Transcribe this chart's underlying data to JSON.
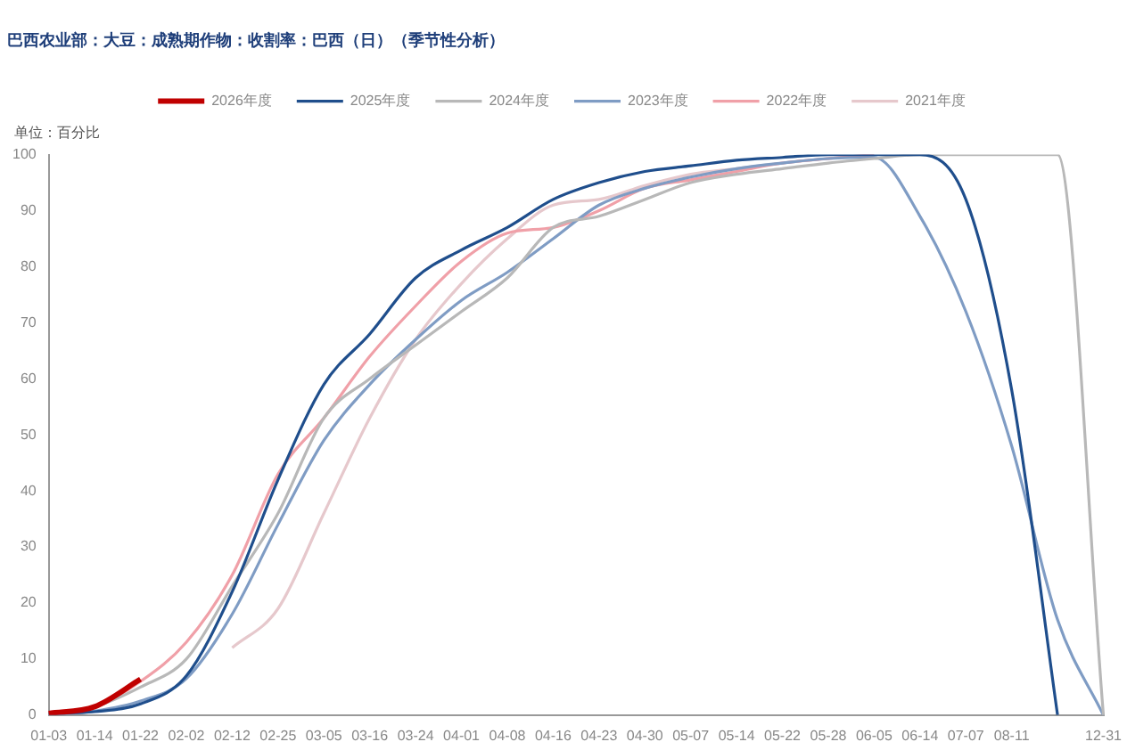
{
  "chart_data": {
    "type": "line",
    "title": "巴西农业部：大豆：成熟期作物：收割率：巴西（日）（季节性分析）",
    "annotations": [
      "单位：百分比"
    ],
    "categories": [
      "01-03",
      "01-14",
      "01-22",
      "02-02",
      "02-12",
      "02-25",
      "03-05",
      "03-16",
      "03-24",
      "04-01",
      "04-08",
      "04-16",
      "04-23",
      "04-30",
      "05-07",
      "05-14",
      "05-22",
      "05-28",
      "06-05",
      "06-14",
      "07-07",
      "08-11",
      null,
      "12-31"
    ],
    "ylim": [
      0,
      100
    ],
    "yticks": [
      0,
      10,
      20,
      30,
      40,
      50,
      60,
      70,
      80,
      90,
      100
    ],
    "grid": false,
    "legend": "top",
    "marker": "none",
    "line_style": "solid",
    "series": [
      {
        "name": "2026年度",
        "color": "#c00000",
        "values": [
          0.3,
          1.5,
          6.4,
          null,
          null,
          null,
          null,
          null,
          null,
          null,
          null,
          null,
          null,
          null,
          null,
          null,
          null,
          null,
          null,
          null,
          null,
          null,
          null,
          null
        ]
      },
      {
        "name": "2025年度",
        "color": "#1f4e8c",
        "values": [
          0.3,
          0.6,
          2,
          7,
          22,
          42,
          59,
          68,
          78,
          83,
          87,
          92,
          95,
          97,
          98,
          99,
          99.5,
          100,
          100,
          100,
          92,
          58,
          0,
          null
        ]
      },
      {
        "name": "2024年度",
        "color": "#b8b8b8",
        "values": [
          0.3,
          1.5,
          5,
          10,
          23,
          36,
          53,
          60,
          66,
          72,
          78,
          87,
          89,
          92,
          95,
          96.5,
          97.5,
          98.5,
          99.3,
          100,
          100,
          100,
          100,
          0
        ]
      },
      {
        "name": "2023年度",
        "color": "#7f9cc4",
        "values": [
          0,
          0.7,
          2.5,
          6.5,
          18,
          34,
          49,
          59,
          67,
          74,
          79,
          85,
          91,
          94,
          96,
          97.5,
          98.5,
          99.3,
          99.5,
          89,
          72,
          48,
          17,
          0
        ]
      },
      {
        "name": "2022年度",
        "color": "#f0a0a8",
        "values": [
          0.5,
          1.5,
          6,
          13,
          25,
          43,
          53,
          64,
          73,
          81,
          86,
          87,
          90,
          94,
          95.5,
          97,
          98.5,
          99.3,
          100,
          null,
          null,
          null,
          null,
          null
        ]
      },
      {
        "name": "2021年度",
        "color": "#e6c8cc",
        "values": [
          null,
          null,
          null,
          null,
          12,
          19,
          36,
          53,
          67,
          77,
          85,
          91,
          92,
          94.5,
          96.5,
          97.5,
          98.5,
          99.3,
          100,
          null,
          null,
          null,
          null,
          null
        ]
      }
    ]
  }
}
